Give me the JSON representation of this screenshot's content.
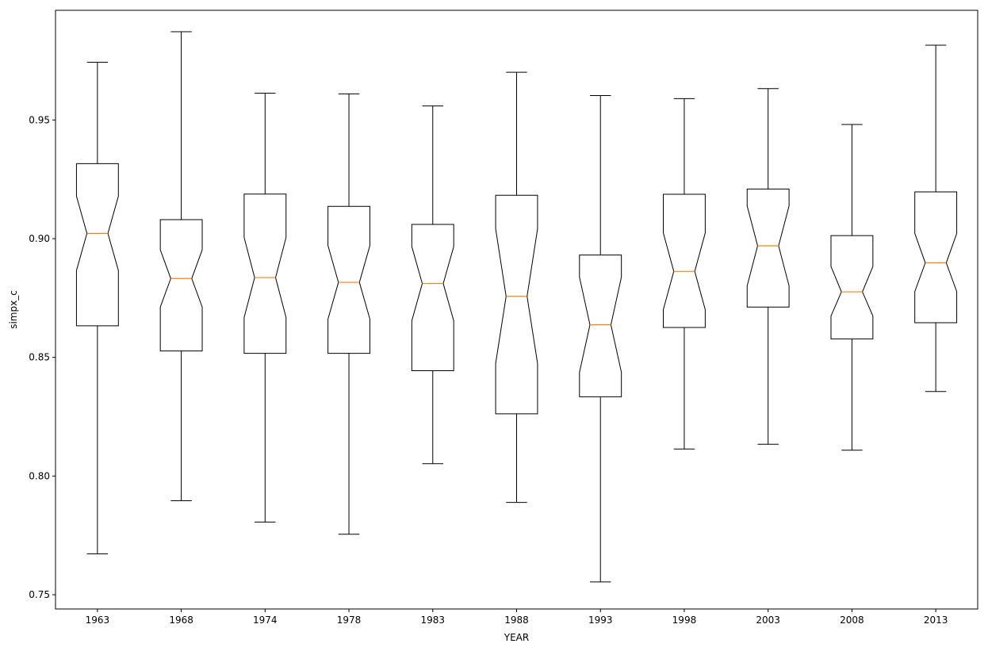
{
  "chart_data": {
    "type": "boxplot",
    "notched": true,
    "xlabel": "YEAR",
    "ylabel": "simpx_c",
    "ylim": [
      0.744,
      0.9962
    ],
    "yticks": [
      "0.75",
      "0.80",
      "0.85",
      "0.90",
      "0.95"
    ],
    "categories": [
      "1963",
      "1968",
      "1974",
      "1978",
      "1983",
      "1988",
      "1993",
      "1998",
      "2003",
      "2008",
      "2013"
    ],
    "boxes": [
      {
        "whisker_low": 0.7672,
        "q1": 0.8633,
        "median": 0.9022,
        "q3": 0.9316,
        "whisker_high": 0.9743,
        "notch_low": 0.8866,
        "notch_high": 0.9179
      },
      {
        "whisker_low": 0.7896,
        "q1": 0.8527,
        "median": 0.8832,
        "q3": 0.908,
        "whisker_high": 0.9872,
        "notch_low": 0.8712,
        "notch_high": 0.8953
      },
      {
        "whisker_low": 0.7806,
        "q1": 0.8517,
        "median": 0.8836,
        "q3": 0.9188,
        "whisker_high": 0.9613,
        "notch_low": 0.8668,
        "notch_high": 0.9005
      },
      {
        "whisker_low": 0.7755,
        "q1": 0.8517,
        "median": 0.8816,
        "q3": 0.9136,
        "whisker_high": 0.961,
        "notch_low": 0.8661,
        "notch_high": 0.8971
      },
      {
        "whisker_low": 0.8052,
        "q1": 0.8444,
        "median": 0.8811,
        "q3": 0.906,
        "whisker_high": 0.9559,
        "notch_low": 0.8654,
        "notch_high": 0.8967
      },
      {
        "whisker_low": 0.7889,
        "q1": 0.8262,
        "median": 0.8757,
        "q3": 0.9183,
        "whisker_high": 0.9701,
        "notch_low": 0.8474,
        "notch_high": 0.9042
      },
      {
        "whisker_low": 0.7554,
        "q1": 0.8334,
        "median": 0.8637,
        "q3": 0.8931,
        "whisker_high": 0.9603,
        "notch_low": 0.8437,
        "notch_high": 0.8838
      },
      {
        "whisker_low": 0.8114,
        "q1": 0.8626,
        "median": 0.8862,
        "q3": 0.9187,
        "whisker_high": 0.959,
        "notch_low": 0.8701,
        "notch_high": 0.9024
      },
      {
        "whisker_low": 0.8134,
        "q1": 0.8712,
        "median": 0.897,
        "q3": 0.9209,
        "whisker_high": 0.9632,
        "notch_low": 0.8801,
        "notch_high": 0.9138
      },
      {
        "whisker_low": 0.8109,
        "q1": 0.8578,
        "median": 0.8776,
        "q3": 0.9013,
        "whisker_high": 0.9481,
        "notch_low": 0.8674,
        "notch_high": 0.8883
      },
      {
        "whisker_low": 0.8356,
        "q1": 0.8646,
        "median": 0.8898,
        "q3": 0.9197,
        "whisker_high": 0.9815,
        "notch_low": 0.8777,
        "notch_high": 0.9022
      }
    ],
    "colors": {
      "box": "#000000",
      "median": "#ff7f0e",
      "background": "#ffffff"
    },
    "grid": false,
    "legend": "none"
  }
}
